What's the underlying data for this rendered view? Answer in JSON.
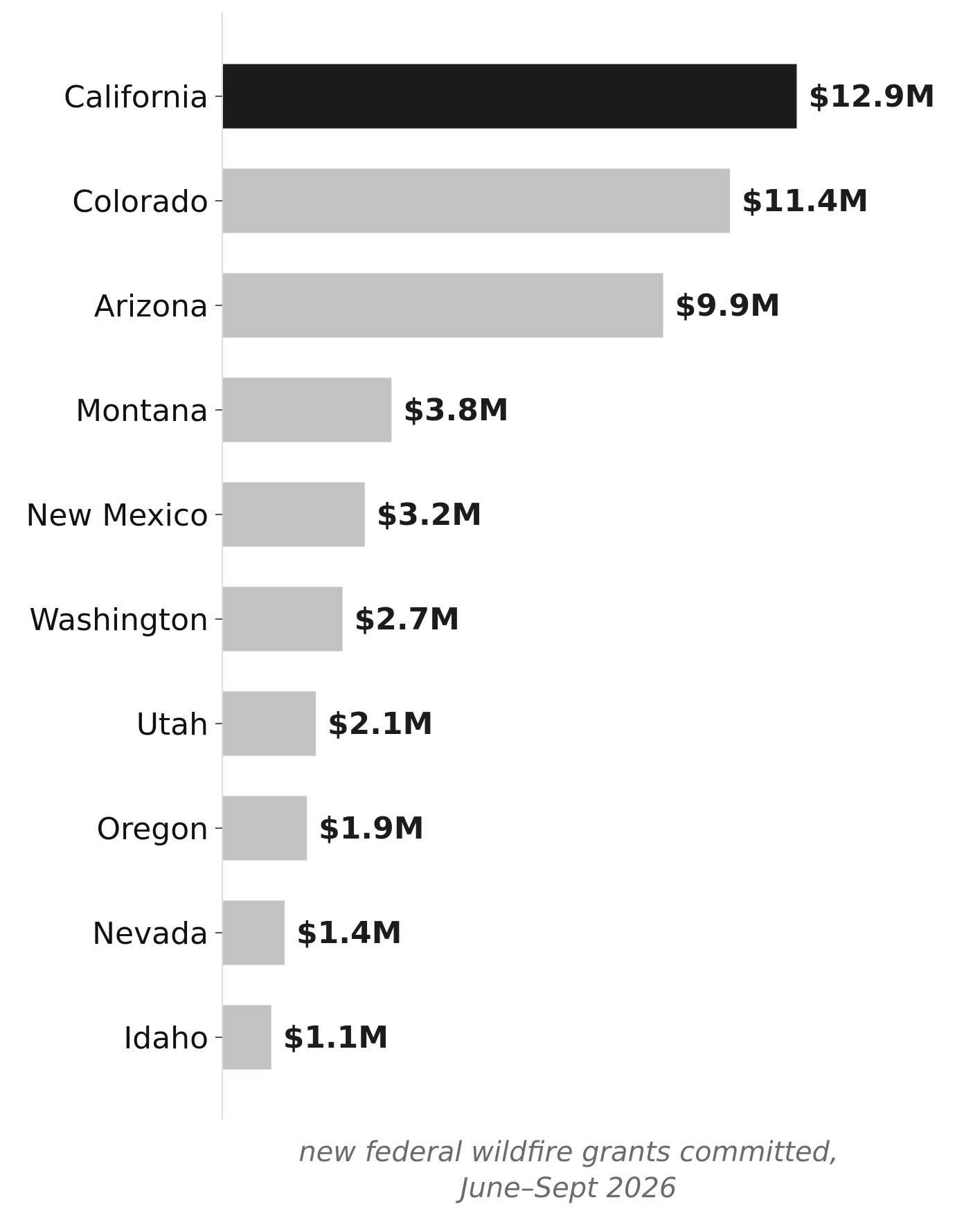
{
  "chart_data": {
    "type": "bar",
    "orientation": "horizontal",
    "categories": [
      "California",
      "Colorado",
      "Arizona",
      "Montana",
      "New Mexico",
      "Washington",
      "Utah",
      "Oregon",
      "Nevada",
      "Idaho"
    ],
    "values": [
      12.9,
      11.4,
      9.9,
      3.8,
      3.2,
      2.7,
      2.1,
      1.9,
      1.4,
      1.1
    ],
    "value_labels": [
      "$12.9M",
      "$11.4M",
      "$9.9M",
      "$3.8M",
      "$3.2M",
      "$2.7M",
      "$2.1M",
      "$1.9M",
      "$1.4M",
      "$1.1M"
    ],
    "unit": "$M",
    "highlight_index": 0,
    "colors": {
      "highlight": "#1c1c1c",
      "bar": "#c3c3c3",
      "axis": "#dddddd",
      "value_label": "#1c1c1c",
      "xlabel": "#6b6b6b"
    },
    "xlabel_lines": [
      "new federal wildfire grants committed,",
      "June–Sept 2026"
    ],
    "title": "",
    "ylabel": "",
    "xlim": [
      0,
      15.5
    ],
    "grid": false,
    "legend": "none"
  }
}
